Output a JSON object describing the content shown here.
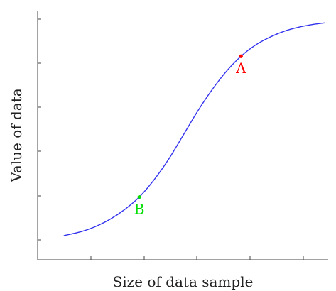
{
  "chart_data": {
    "type": "line",
    "xlabel": "Size of data sample",
    "ylabel": "Value of data",
    "xlim": [
      0,
      1
    ],
    "ylim": [
      0,
      1
    ],
    "grid": false,
    "xticks": 5,
    "yticks": 6,
    "series": [
      {
        "color": "#3333ee",
        "x": [
          0.09,
          0.15,
          0.2,
          0.25,
          0.3,
          0.35,
          0.4,
          0.45,
          0.5,
          0.55,
          0.6,
          0.65,
          0.7,
          0.75,
          0.8,
          0.85,
          0.9,
          0.95,
          0.99
        ],
        "y": [
          0.097,
          0.113,
          0.134,
          0.163,
          0.202,
          0.252,
          0.32,
          0.402,
          0.498,
          0.595,
          0.682,
          0.757,
          0.817,
          0.862,
          0.894,
          0.918,
          0.934,
          0.945,
          0.951
        ]
      }
    ],
    "points": [
      {
        "label": "A",
        "x": 0.7,
        "y": 0.817,
        "color": "#ff0000"
      },
      {
        "label": "B",
        "x": 0.35,
        "y": 0.252,
        "color": "#00dd00"
      }
    ]
  }
}
